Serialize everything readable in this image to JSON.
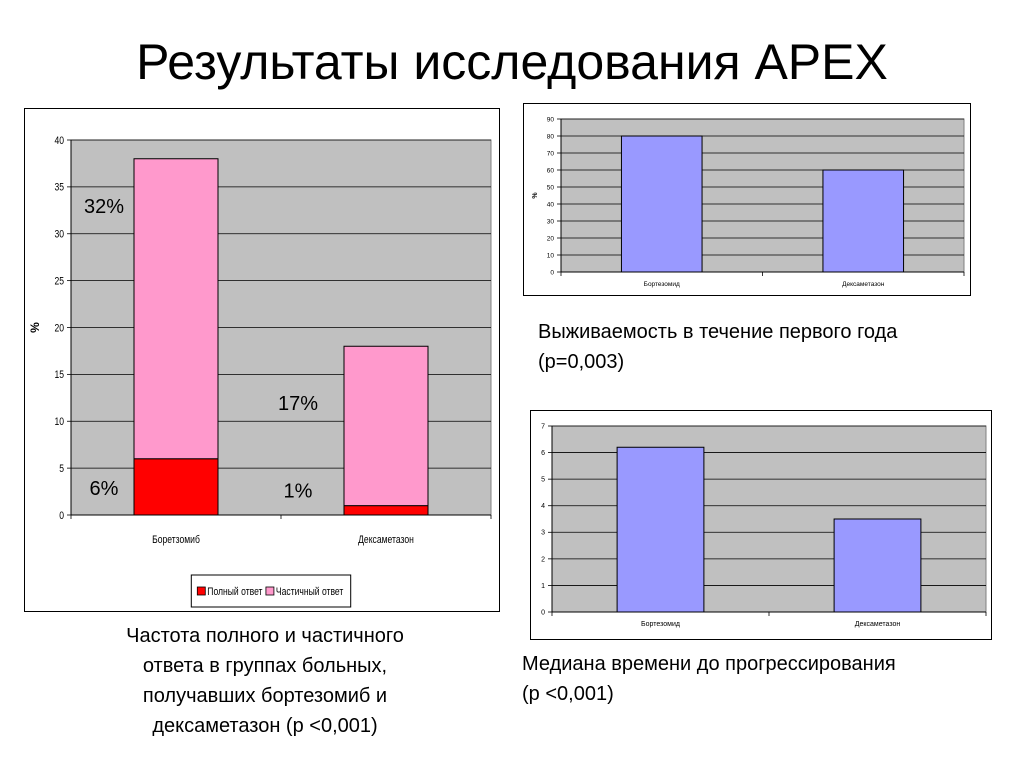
{
  "page": {
    "title": "Результаты исследования APEX"
  },
  "captions": {
    "left": [
      "Частота полного и частичного",
      "ответа в группах больных,",
      "получавших бортезомиб и",
      "дексаметазон (p <0,001)"
    ],
    "top_right": [
      "Выживаемость в течение первого года",
      "(p=0,003)"
    ],
    "bottom_right": [
      "Медиана времени до прогрессирования",
      "(p <0,001)"
    ]
  },
  "colors": {
    "plot_bg": "#c0c0c0",
    "red": "#ff0000",
    "pink": "#ff99cc",
    "blue": "#9999ff"
  },
  "chart_data": [
    {
      "type": "bar",
      "stacked": true,
      "categories": [
        "Боретзомиб",
        "Дексаметазон"
      ],
      "series": [
        {
          "name": "Полный ответ",
          "color": "#ff0000",
          "values": [
            6,
            1
          ]
        },
        {
          "name": "Частичный ответ",
          "color": "#ff99cc",
          "values": [
            32,
            17
          ]
        }
      ],
      "annotations": [
        {
          "text": "6%",
          "category": 0,
          "series": 0
        },
        {
          "text": "32%",
          "category": 0,
          "series": 1
        },
        {
          "text": "1%",
          "category": 1,
          "series": 0
        },
        {
          "text": "17%",
          "category": 1,
          "series": 1
        }
      ],
      "ylabel": "%",
      "ylim": [
        0,
        40
      ],
      "yticks": [
        0,
        5,
        10,
        15,
        20,
        25,
        30,
        35,
        40
      ],
      "grid": true,
      "legend": "bottom"
    },
    {
      "type": "bar",
      "categories": [
        "Бортезомид",
        "Дексаметазон"
      ],
      "values": [
        80,
        60
      ],
      "color": "#9999ff",
      "ylabel": "%",
      "ylim": [
        0,
        90
      ],
      "yticks": [
        0,
        10,
        20,
        30,
        40,
        50,
        60,
        70,
        80,
        90
      ],
      "grid": true
    },
    {
      "type": "bar",
      "categories": [
        "Бортезомид",
        "Дексаметазон"
      ],
      "values": [
        6.2,
        3.5
      ],
      "color": "#9999ff",
      "ylabel": "",
      "ylim": [
        0,
        7
      ],
      "yticks": [
        0,
        1,
        2,
        3,
        4,
        5,
        6,
        7
      ],
      "grid": true
    }
  ]
}
